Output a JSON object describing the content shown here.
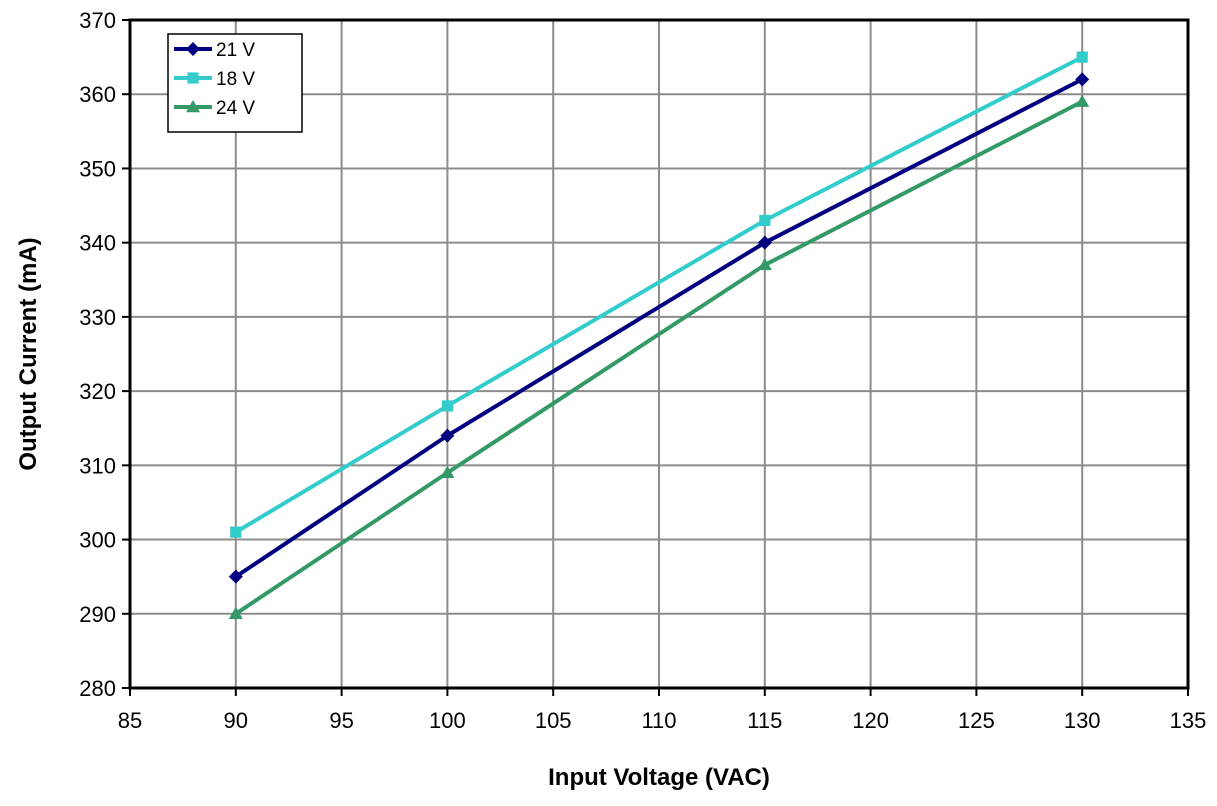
{
  "chart_data": {
    "type": "line",
    "xlabel": "Input Voltage (VAC)",
    "ylabel": "Output Current (mA)",
    "xlim": [
      85,
      135
    ],
    "ylim": [
      280,
      370
    ],
    "xticks": [
      85,
      90,
      95,
      100,
      105,
      110,
      115,
      120,
      125,
      130,
      135
    ],
    "yticks": [
      280,
      290,
      300,
      310,
      320,
      330,
      340,
      350,
      360,
      370
    ],
    "grid": true,
    "legend_position": "top-left",
    "x": [
      90,
      100,
      115,
      130
    ],
    "series": [
      {
        "name": "21 V",
        "values": [
          295,
          314,
          340,
          362
        ],
        "color": "#000080",
        "marker": "diamond"
      },
      {
        "name": "18 V",
        "values": [
          301,
          318,
          343,
          365
        ],
        "color": "#33CCCC",
        "marker": "square"
      },
      {
        "name": "24 V",
        "values": [
          290,
          309,
          337,
          359
        ],
        "color": "#339966",
        "marker": "triangle"
      }
    ]
  }
}
